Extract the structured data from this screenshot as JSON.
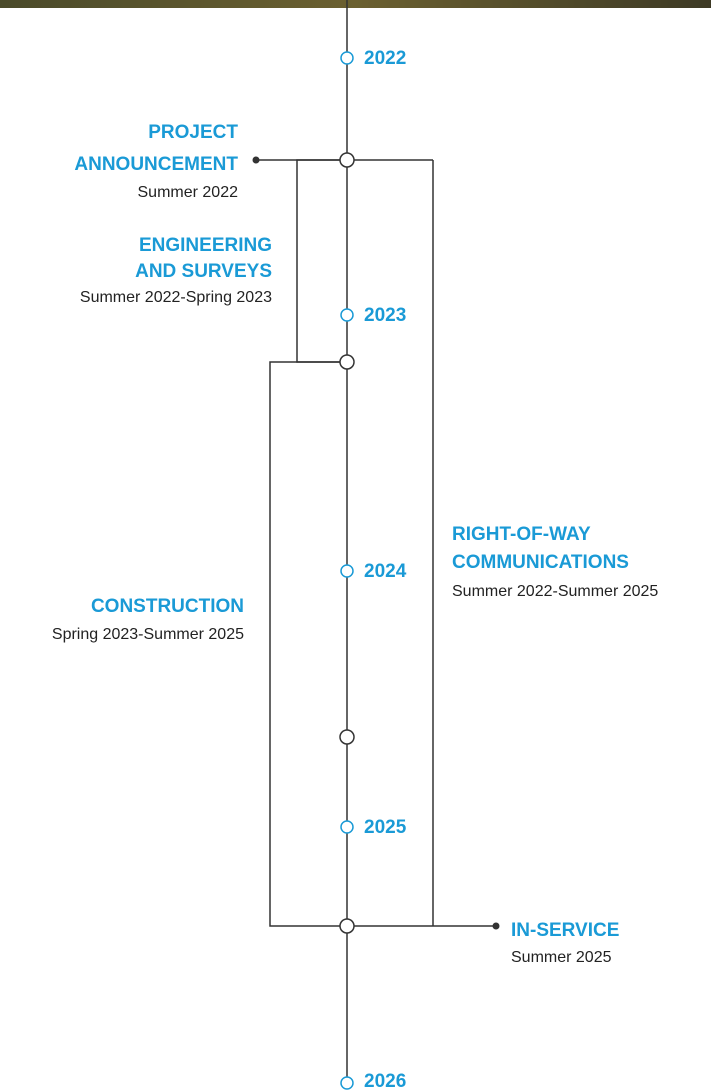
{
  "years": [
    "2022",
    "2023",
    "2024",
    "2025",
    "2026"
  ],
  "events": [
    {
      "title_lines": [
        "PROJECT",
        "ANNOUNCEMENT"
      ],
      "date": "Summer 2022"
    },
    {
      "title_lines": [
        "ENGINEERING",
        "AND SURVEYS"
      ],
      "date": "Summer 2022-Spring 2023"
    },
    {
      "title_lines": [
        "RIGHT-OF-WAY",
        "COMMUNICATIONS"
      ],
      "date": "Summer 2022-Summer 2025"
    },
    {
      "title_lines": [
        "CONSTRUCTION"
      ],
      "date": "Spring 2023-Summer 2025"
    },
    {
      "title_lines": [
        "IN-SERVICE"
      ],
      "date": "Summer 2025"
    }
  ]
}
